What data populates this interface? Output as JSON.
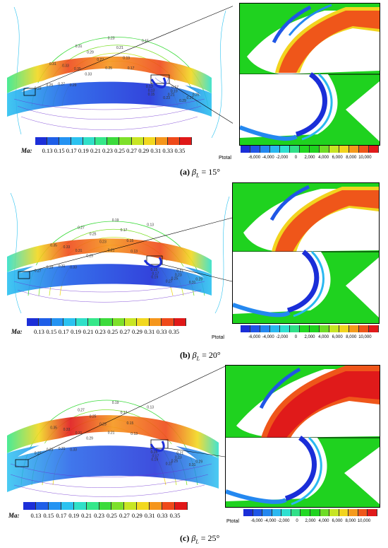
{
  "panels": [
    {
      "id": "a",
      "caption_letter": "(a)",
      "caption_symbol": "β",
      "caption_sub": "L",
      "caption_rest": " = 15°",
      "contours": [
        "0.23",
        "0.25",
        "0.27",
        "0.29",
        "0.31",
        "0.33",
        "0.35",
        "0.33",
        "0.31",
        "0.29",
        "0.27",
        "0.25",
        "0.23",
        "0.21",
        "0.19",
        "0.17",
        "0.15",
        "0.13",
        "0.13",
        "0.15",
        "0.17",
        "0.19",
        "0.21",
        "0.23",
        "0.25",
        "0.27",
        "0.29"
      ]
    },
    {
      "id": "b",
      "caption_letter": "(b)",
      "caption_symbol": "β",
      "caption_sub": "L",
      "caption_rest": " = 20°",
      "contours": [
        "0.27",
        "0.29",
        "0.31",
        "0.33",
        "0.35",
        "0.33",
        "0.31",
        "0.29",
        "0.27",
        "0.25",
        "0.23",
        "0.21",
        "0.19",
        "0.17",
        "0.15",
        "0.13",
        "0.13",
        "0.15",
        "0.17",
        "0.19",
        "0.21",
        "0.23",
        "0.25",
        "0.27",
        "0.29",
        "0.31"
      ]
    },
    {
      "id": "c",
      "caption_letter": "(c)",
      "caption_symbol": "β",
      "caption_sub": "L",
      "caption_rest": " = 25°",
      "contours": [
        "0.27",
        "0.29",
        "0.31",
        "0.33",
        "0.35",
        "0.33",
        "0.31",
        "0.29",
        "0.27",
        "0.25",
        "0.23",
        "0.21",
        "0.19",
        "0.17",
        "0.15",
        "0.13",
        "0.13",
        "0.15",
        "0.17",
        "0.19",
        "0.21",
        "0.23",
        "0.25",
        "0.27",
        "0.29",
        "0.31"
      ]
    }
  ],
  "ma_bar": {
    "label": "Ma",
    "ticks": [
      "0.13",
      "0.15",
      "0.17",
      "0.19",
      "0.21",
      "0.23",
      "0.25",
      "0.27",
      "0.29",
      "0.31",
      "0.33",
      "0.35"
    ],
    "colors": [
      "#1c2fd8",
      "#1f5fe8",
      "#2493f2",
      "#2bc2f0",
      "#30e0c8",
      "#35e88a",
      "#3cdb3c",
      "#7de02a",
      "#c8e624",
      "#f2d81f",
      "#f5961c",
      "#ef4a1a",
      "#e01818"
    ]
  },
  "ptotal_bar": {
    "label": "Ptotal",
    "ticks": [
      "-6,000",
      "-4,000",
      "-2,000",
      "0",
      "2,000",
      "4,000",
      "6,000",
      "8,000",
      "10,000"
    ],
    "colors": [
      "#1a2ed8",
      "#1f56e6",
      "#2488f0",
      "#2ab8f0",
      "#2ee0d0",
      "#30e088",
      "#22d822",
      "#1fd21f",
      "#6edc26",
      "#c7e524",
      "#f2d41e",
      "#f59a1c",
      "#ef561a",
      "#e01a1a"
    ]
  }
}
